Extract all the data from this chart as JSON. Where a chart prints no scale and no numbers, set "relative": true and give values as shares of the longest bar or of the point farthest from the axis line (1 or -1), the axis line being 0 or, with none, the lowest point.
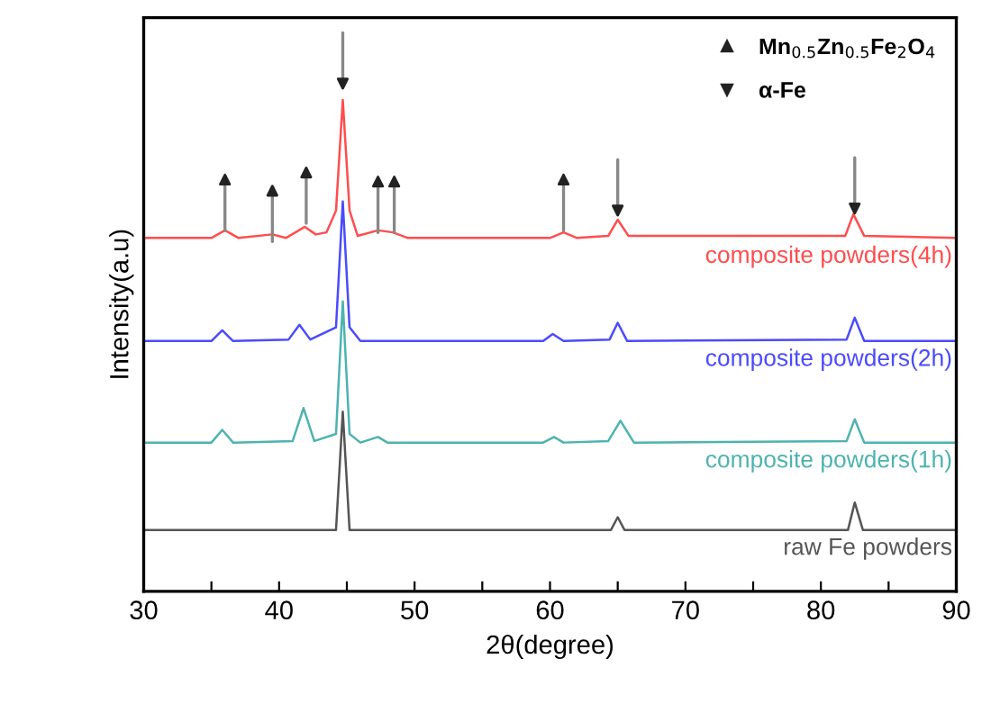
{
  "chart_data": {
    "type": "line",
    "relative": true,
    "xlabel": "2θ(degree)",
    "ylabel": "Intensity(a.u)",
    "xlim": [
      30,
      90
    ],
    "xticks": [
      30,
      {
        "value": 35,
        "label": null
      },
      40,
      {
        "value": 45,
        "label": null
      },
      50,
      {
        "value": 55,
        "label": null
      },
      60,
      {
        "value": 65,
        "label": null
      },
      70,
      {
        "value": 75,
        "label": null
      },
      80,
      {
        "value": 85,
        "label": null
      },
      90
    ],
    "tick_labels": "x",
    "grid": false,
    "legend": "top right",
    "line_style": "solid",
    "marker": "none",
    "series": [
      {
        "name": "composite powders(4h)",
        "color": "#ff4d4d",
        "x": [
          30,
          35,
          36,
          37,
          39.5,
          40.5,
          41.9,
          42.7,
          43.5,
          44.2,
          44.7,
          45.2,
          45.8,
          47.3,
          48.4,
          49.5,
          60,
          61,
          62,
          64.3,
          65,
          65.8,
          81.8,
          82.4,
          83.2,
          90
        ],
        "values": [
          0.696,
          0.696,
          0.711,
          0.696,
          0.703,
          0.696,
          0.718,
          0.703,
          0.707,
          0.75,
          0.968,
          0.75,
          0.7,
          0.711,
          0.707,
          0.696,
          0.696,
          0.707,
          0.696,
          0.7,
          0.732,
          0.7,
          0.7,
          0.743,
          0.7,
          0.696
        ]
      },
      {
        "name": "composite powders(2h)",
        "color": "#4a4aff",
        "x": [
          30,
          35,
          35.8,
          36.6,
          40.7,
          41.5,
          42.3,
          44.2,
          44.7,
          45.2,
          46,
          59.5,
          60.2,
          61,
          64.4,
          65,
          65.7,
          81.9,
          82.5,
          83.2,
          90
        ],
        "values": [
          0.493,
          0.493,
          0.514,
          0.493,
          0.496,
          0.525,
          0.496,
          0.52,
          0.768,
          0.52,
          0.493,
          0.493,
          0.507,
          0.493,
          0.496,
          0.529,
          0.493,
          0.496,
          0.539,
          0.493,
          0.493
        ]
      },
      {
        "name": "composite powders(1h)",
        "color": "#4db3b0",
        "x": [
          30,
          35,
          35.8,
          36.6,
          41,
          41.8,
          42.6,
          44.2,
          44.7,
          45.2,
          46,
          47.3,
          48,
          59.5,
          60.3,
          61,
          64.3,
          65.2,
          66.2,
          81.9,
          82.5,
          83.2,
          90
        ],
        "values": [
          0.293,
          0.293,
          0.318,
          0.293,
          0.296,
          0.361,
          0.296,
          0.31,
          0.571,
          0.31,
          0.293,
          0.304,
          0.293,
          0.293,
          0.304,
          0.293,
          0.296,
          0.336,
          0.293,
          0.296,
          0.339,
          0.293,
          0.293
        ]
      },
      {
        "name": "raw Fe powders",
        "color": "#555555",
        "x": [
          30,
          44.2,
          44.7,
          45.2,
          64.5,
          65,
          65.5,
          82,
          82.5,
          83.1,
          90
        ],
        "values": [
          0.121,
          0.121,
          0.354,
          0.121,
          0.121,
          0.146,
          0.121,
          0.121,
          0.175,
          0.121,
          0.121
        ]
      },
      {
        "name": "Mn$_{0.5}$Zn$_{0.5}$Fe$_{2}$O$_{4}$",
        "type": "scatter",
        "marker": "triangle",
        "color": "#222222",
        "x": [
          36,
          39.5,
          42,
          47.3,
          48.5,
          61
        ],
        "values": [
          0.811,
          0.789,
          0.825,
          0.807,
          0.807,
          0.811
        ]
      },
      {
        "name": "α-Fe",
        "type": "scatter",
        "marker": "triangle",
        "color": "#222222",
        "x": [
          44.7,
          65,
          82.5
        ],
        "values": [
          1.0,
          0.75,
          0.754
        ]
      }
    ]
  }
}
